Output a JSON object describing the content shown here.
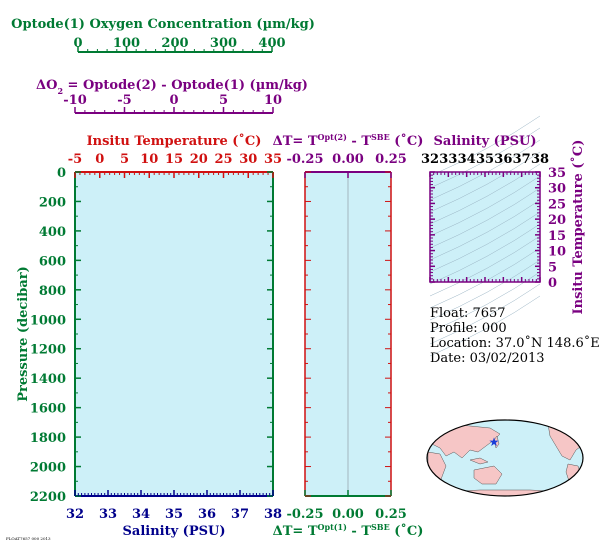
{
  "colors": {
    "green": "#007a33",
    "purple": "#7a0080",
    "red": "#d01010",
    "blue": "#00008b",
    "black": "#000000",
    "panel": "#cdf0f8",
    "isoline": "#9ab4c4",
    "land": "#f6c6c6",
    "ocean": "#cdf0f8"
  },
  "icons": {
    "float_marker": "blue-star"
  },
  "footer_stamp": "FLOAT7657 000 2013",
  "chart_data": [
    {
      "type": "line",
      "name": "main-profile",
      "ylabel": "Pressure (decibar)",
      "ylim": [
        2200,
        0
      ],
      "yticks": [
        "0",
        "200",
        "400",
        "600",
        "800",
        "1000",
        "1200",
        "1400",
        "1600",
        "1800",
        "2000",
        "2200"
      ],
      "xaxes": {
        "oxygen": {
          "label": "Optode(1) Oxygen Concentration (µm/kg)",
          "range": [
            0,
            400
          ],
          "ticks": [
            "0",
            "100",
            "200",
            "300",
            "400"
          ]
        },
        "delta_o2": {
          "label_prefix": "ΔO",
          "label_sub": "2",
          "label_rest": " = Optode(2) - Optode(1)     (µm/kg)",
          "range": [
            -10,
            10
          ],
          "ticks": [
            "-10",
            "-5",
            "0",
            "5",
            "10"
          ]
        },
        "temperature": {
          "label": "Insitu Temperature (˚C)",
          "range": [
            -5,
            35
          ],
          "ticks": [
            "-5",
            "0",
            "5",
            "10",
            "15",
            "20",
            "25",
            "30",
            "35"
          ]
        },
        "salinity": {
          "label": "Salinity (PSU)",
          "range": [
            32,
            38
          ],
          "ticks": [
            "32",
            "33",
            "34",
            "35",
            "36",
            "37",
            "38"
          ]
        }
      },
      "series": []
    },
    {
      "type": "line",
      "name": "temperature-difference",
      "xlim": [
        -0.25,
        0.25
      ],
      "xticks": [
        "-0.25",
        "0.00",
        "0.25"
      ],
      "top_label": {
        "pre": "ΔT= T",
        "sup": "Opt(2)",
        "mid": " - T",
        "sup2": "SBE",
        "post": " (˚C)"
      },
      "bottom_label": {
        "pre": "ΔT= T",
        "sup": "Opt(1)",
        "mid": " - T",
        "sup2": "SBE",
        "post": " (˚C)"
      },
      "series": []
    },
    {
      "type": "scatter",
      "name": "ts-diagram",
      "xlabel": "Salinity (PSU)",
      "ylabel": "Insitu Temperature (˚C)",
      "xlim": [
        32,
        38
      ],
      "ylim": [
        0,
        35
      ],
      "xticks": [
        "32",
        "33",
        "34",
        "35",
        "36",
        "37",
        "38"
      ],
      "yticks": [
        "0",
        "5",
        "10",
        "15",
        "20",
        "25",
        "30",
        "35"
      ],
      "series": []
    }
  ],
  "info": {
    "float": "Float:  7657",
    "profile": "Profile:  000",
    "location": "Location:  37.0˚N  148.6˚E",
    "date": "Date:  03/02/2013"
  },
  "map": {
    "float_lat": 37.0,
    "float_lon": 148.6
  }
}
